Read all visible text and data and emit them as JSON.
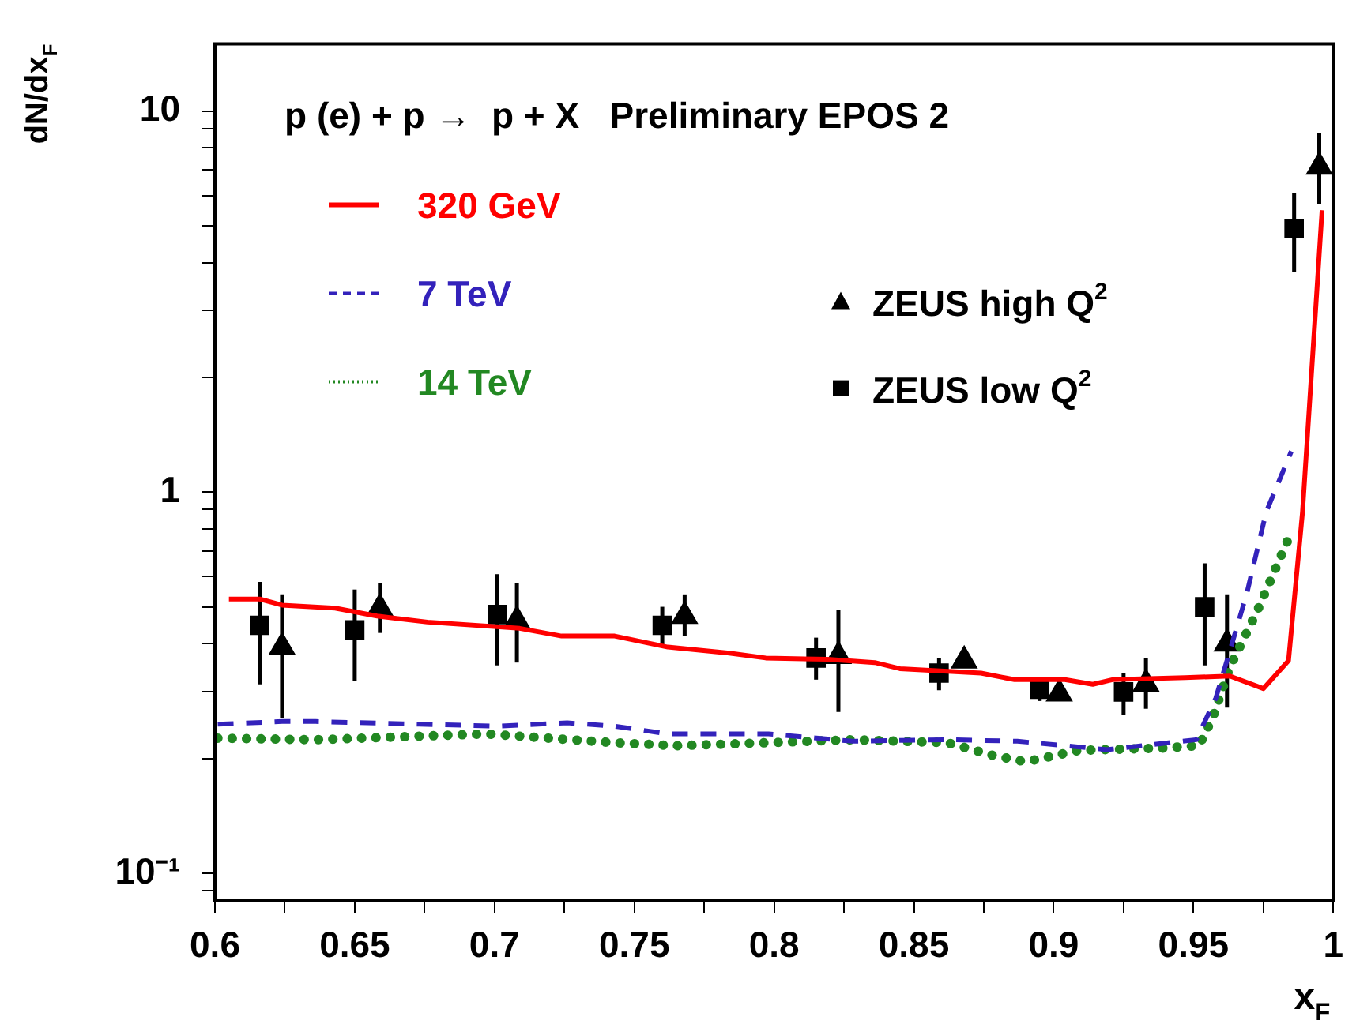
{
  "chart_data": {
    "type": "line",
    "title": "p (e) + p →  p + X   Preliminary EPOS 2",
    "xlabel": "x$_{F}$",
    "ylabel": "dN/dx$_{F}$",
    "log": "y",
    "grid": false,
    "legend": "top left",
    "xlim": [
      0.6,
      1
    ],
    "ylim": [
      0.085,
      15
    ],
    "xticks": [
      0.6,
      {
        "value": 0.625,
        "label": null
      },
      0.65,
      {
        "value": 0.675,
        "label": null
      },
      0.7,
      {
        "value": 0.725,
        "label": null
      },
      0.75,
      {
        "value": 0.775,
        "label": null
      },
      0.8,
      {
        "value": 0.825,
        "label": null
      },
      0.85,
      {
        "value": 0.875,
        "label": null
      },
      0.9,
      {
        "value": 0.925,
        "label": null
      },
      0.95,
      {
        "value": 0.975,
        "label": null
      },
      1
    ],
    "yticks": [
      {
        "value": 0.09,
        "label": null
      },
      {
        "value": 0.1,
        "label": "10⁻¹"
      },
      {
        "value": 0.2,
        "label": null
      },
      {
        "value": 0.3,
        "label": null
      },
      {
        "value": 0.4,
        "label": null
      },
      {
        "value": 0.5,
        "label": null
      },
      {
        "value": 0.6,
        "label": null
      },
      {
        "value": 0.7,
        "label": null
      },
      {
        "value": 0.8,
        "label": null
      },
      {
        "value": 0.9,
        "label": null
      },
      1,
      {
        "value": 2,
        "label": null
      },
      {
        "value": 3,
        "label": null
      },
      {
        "value": 4,
        "label": null
      },
      {
        "value": 5,
        "label": null
      },
      {
        "value": 6,
        "label": null
      },
      {
        "value": 7,
        "label": null
      },
      {
        "value": 8,
        "label": null
      },
      {
        "value": 9,
        "label": null
      },
      10
    ],
    "series": [
      {
        "name": "320 GeV",
        "type": "line",
        "color": "#ff0000",
        "line_style": "solid",
        "marker": "none",
        "x": [
          0.605,
          0.616,
          0.624,
          0.643,
          0.658,
          0.676,
          0.709,
          0.724,
          0.743,
          0.762,
          0.784,
          0.797,
          0.819,
          0.836,
          0.845,
          0.874,
          0.886,
          0.904,
          0.914,
          0.921,
          0.947,
          0.963,
          0.975,
          0.984,
          0.989,
          0.996
        ],
        "values": [
          0.524,
          0.524,
          0.505,
          0.496,
          0.473,
          0.456,
          0.439,
          0.419,
          0.419,
          0.392,
          0.378,
          0.367,
          0.364,
          0.357,
          0.344,
          0.335,
          0.322,
          0.322,
          0.313,
          0.322,
          0.326,
          0.329,
          0.305,
          0.361,
          0.886,
          5.49
        ]
      },
      {
        "name": "7 TeV",
        "type": "line",
        "color": "#3322bb",
        "line_style": "dashed",
        "marker": "none",
        "x": [
          0.601,
          0.624,
          0.636,
          0.673,
          0.701,
          0.726,
          0.743,
          0.762,
          0.798,
          0.828,
          0.862,
          0.887,
          0.919,
          0.951,
          0.958,
          0.969,
          0.976,
          0.985
        ],
        "values": [
          0.246,
          0.25,
          0.25,
          0.246,
          0.243,
          0.248,
          0.243,
          0.232,
          0.232,
          0.222,
          0.224,
          0.222,
          0.211,
          0.224,
          0.288,
          0.539,
          0.886,
          1.28
        ]
      },
      {
        "name": "14 TeV",
        "type": "line",
        "color": "#228822",
        "line_style": "dotted",
        "marker": "none",
        "x": [
          0.601,
          0.636,
          0.697,
          0.743,
          0.765,
          0.798,
          0.828,
          0.862,
          0.878,
          0.89,
          0.909,
          0.939,
          0.952,
          0.957,
          0.963,
          0.973,
          0.984
        ],
        "values": [
          0.226,
          0.224,
          0.232,
          0.22,
          0.216,
          0.22,
          0.224,
          0.22,
          0.204,
          0.196,
          0.21,
          0.213,
          0.216,
          0.257,
          0.347,
          0.491,
          0.755
        ]
      },
      {
        "name": "ZEUS high Q$^{2}$",
        "type": "scatter",
        "color": "#000000",
        "marker": "triangle",
        "x": [
          0.624,
          0.659,
          0.708,
          0.768,
          0.823,
          0.868,
          0.902,
          0.933,
          0.962,
          0.995
        ],
        "values": [
          0.392,
          0.496,
          0.46,
          0.473,
          0.371,
          0.361,
          0.296,
          0.314,
          0.4,
          7.14
        ],
        "errors": [
          [
            0.255,
            0.539
          ],
          [
            0.427,
            0.576
          ],
          [
            0.357,
            0.576
          ],
          [
            0.419,
            0.539
          ],
          [
            0.265,
            0.491
          ],
          null,
          null,
          [
            0.27,
            0.367
          ],
          [
            0.272,
            0.539
          ],
          [
            5.7,
            8.77
          ]
        ]
      },
      {
        "name": "ZEUS low Q$^{2}$",
        "type": "scatter",
        "color": "#000000",
        "marker": "square",
        "x": [
          0.616,
          0.65,
          0.701,
          0.76,
          0.815,
          0.859,
          0.895,
          0.925,
          0.954,
          0.986
        ],
        "values": [
          0.447,
          0.435,
          0.477,
          0.447,
          0.367,
          0.335,
          0.304,
          0.299,
          0.5,
          4.91
        ],
        "errors": [
          [
            0.313,
            0.581
          ],
          [
            0.319,
            0.555
          ],
          [
            0.351,
            0.609
          ],
          [
            0.392,
            0.5
          ],
          [
            0.322,
            0.415
          ],
          [
            0.302,
            0.367
          ],
          [
            0.283,
            0.325
          ],
          [
            0.26,
            0.335
          ],
          [
            0.351,
            0.65
          ],
          [
            3.78,
            6.09
          ]
        ]
      }
    ]
  }
}
